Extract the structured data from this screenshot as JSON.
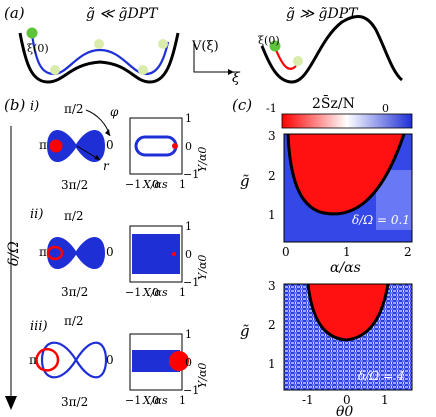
{
  "panel_a": {
    "label": "(a)",
    "left_title": "g̃ ≪ g̃DPT",
    "right_title": "g̃ ≫ g̃DPT",
    "xi0": "ξ(0)",
    "V_axis": "V(ξ)",
    "xi_axis": "ξ"
  },
  "panel_b": {
    "label": "(b)",
    "delta_axis": "δ/Ω",
    "rows": [
      {
        "tag": "i)",
        "top": "π/2",
        "left": "π",
        "right": "0",
        "bottom": "3π/2"
      },
      {
        "tag": "ii)",
        "top": "π/2",
        "left": "π",
        "right": "0",
        "bottom": "3π/2"
      },
      {
        "tag": "iii)",
        "top": "π/2",
        "left": "π",
        "right": "0",
        "bottom": "3π/2"
      }
    ],
    "phi": "φ",
    "r": "r",
    "x_label": "X/αs",
    "y_label": "Y/α0",
    "x_ticks": [
      "−1",
      "0",
      "1"
    ],
    "y_ticks": [
      "1",
      "0",
      "−1"
    ]
  },
  "panel_c": {
    "label": "(c)",
    "colorbar_title": "2S̄z/N",
    "colorbar_ticks": [
      "-1",
      "0"
    ],
    "top_plot": {
      "y_label": "g̃",
      "x_label": "α/αs",
      "y_ticks": [
        "3",
        "2",
        "1"
      ],
      "x_ticks": [
        "0",
        "1",
        "2"
      ],
      "annotation": "δ/Ω = 0.1"
    },
    "bottom_plot": {
      "y_label": "g̃",
      "x_label": "θ0",
      "y_ticks": [
        "3",
        "2",
        "1"
      ],
      "x_ticks": [
        "-1",
        "0",
        "1"
      ],
      "annotation": "δ/Ω = 4"
    }
  },
  "colors": {
    "blue": "#1f2fd6",
    "red": "#ff0000",
    "green": "#5ec43a",
    "yellowgreen": "#d9ecac"
  }
}
